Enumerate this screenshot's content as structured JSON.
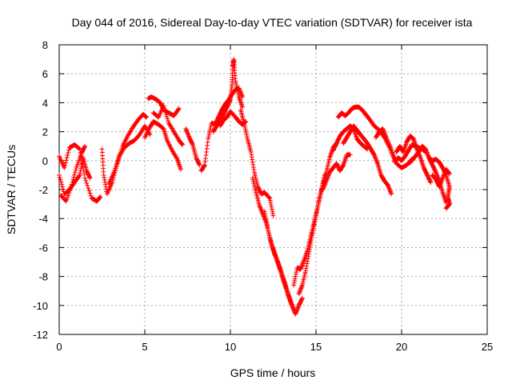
{
  "chart_data": {
    "type": "scatter",
    "title": "Day 044 of 2016, Sidereal Day-to-day VTEC variation (SDTVAR) for receiver ista",
    "xlabel": "GPS time / hours",
    "ylabel": "SDTVAR / TECUs",
    "xlim": [
      0,
      25
    ],
    "ylim": [
      -12,
      8
    ],
    "xticks": [
      0,
      5,
      10,
      15,
      20,
      25
    ],
    "yticks": [
      -12,
      -10,
      -8,
      -6,
      -4,
      -2,
      0,
      2,
      4,
      6,
      8
    ],
    "grid": true,
    "marker": "+",
    "series": [
      {
        "name": "SDTVAR",
        "color": "#ff0000",
        "strands": [
          [
            [
              0.0,
              0.3
            ],
            [
              0.3,
              -0.5
            ],
            [
              0.6,
              0.9
            ],
            [
              0.9,
              1.1
            ],
            [
              1.2,
              0.8
            ],
            [
              1.5,
              -1.2
            ],
            [
              1.9,
              -2.6
            ],
            [
              2.2,
              -2.8
            ],
            [
              2.4,
              -2.5
            ]
          ],
          [
            [
              0.0,
              -1.0
            ],
            [
              0.3,
              -2.3
            ],
            [
              0.6,
              -2.0
            ],
            [
              0.9,
              -1.5
            ],
            [
              1.2,
              -1.0
            ],
            [
              1.4,
              0.2
            ],
            [
              1.6,
              -0.7
            ],
            [
              1.8,
              -1.2
            ]
          ],
          [
            [
              0.1,
              -2.4
            ],
            [
              0.4,
              -2.8
            ],
            [
              0.7,
              -1.8
            ],
            [
              1.0,
              -0.5
            ],
            [
              1.3,
              0.5
            ],
            [
              1.5,
              1.0
            ]
          ],
          [
            [
              2.5,
              0.8
            ],
            [
              2.6,
              -1.0
            ],
            [
              2.8,
              -2.3
            ],
            [
              3.1,
              -1.5
            ],
            [
              3.4,
              -0.2
            ],
            [
              3.7,
              1.0
            ],
            [
              4.0,
              1.7
            ],
            [
              4.3,
              2.3
            ],
            [
              4.6,
              2.8
            ],
            [
              4.9,
              3.2
            ],
            [
              5.1,
              3.0
            ]
          ],
          [
            [
              2.9,
              -1.6
            ],
            [
              3.2,
              -0.8
            ],
            [
              3.5,
              0.3
            ],
            [
              3.8,
              0.9
            ],
            [
              4.1,
              1.2
            ],
            [
              4.4,
              1.4
            ],
            [
              4.7,
              1.8
            ],
            [
              5.0,
              2.4
            ],
            [
              5.3,
              1.8
            ]
          ],
          [
            [
              5.0,
              1.6
            ],
            [
              5.3,
              2.3
            ],
            [
              5.5,
              2.7
            ],
            [
              5.8,
              2.5
            ],
            [
              6.1,
              2.2
            ],
            [
              6.3,
              1.4
            ],
            [
              6.6,
              0.7
            ],
            [
              6.9,
              0.1
            ],
            [
              7.1,
              -0.6
            ]
          ],
          [
            [
              5.2,
              4.3
            ],
            [
              5.4,
              4.4
            ],
            [
              5.7,
              4.2
            ],
            [
              5.9,
              4.0
            ],
            [
              6.1,
              3.5
            ],
            [
              6.4,
              3.3
            ],
            [
              6.7,
              3.1
            ],
            [
              7.0,
              3.6
            ]
          ],
          [
            [
              5.5,
              3.3
            ],
            [
              5.8,
              3.0
            ],
            [
              6.1,
              3.8
            ],
            [
              6.4,
              2.6
            ],
            [
              6.7,
              2.0
            ],
            [
              7.0,
              1.4
            ],
            [
              7.2,
              1.1
            ]
          ],
          [
            [
              7.4,
              2.2
            ],
            [
              7.6,
              1.6
            ],
            [
              7.8,
              1.1
            ],
            [
              8.0,
              0.2
            ],
            [
              8.2,
              -0.3
            ]
          ],
          [
            [
              8.3,
              -0.7
            ],
            [
              8.5,
              -0.3
            ],
            [
              8.7,
              1.5
            ],
            [
              8.9,
              2.6
            ],
            [
              9.1,
              2.5
            ],
            [
              9.3,
              3.0
            ],
            [
              9.5,
              3.5
            ],
            [
              9.7,
              3.9
            ],
            [
              9.9,
              4.2
            ],
            [
              10.1,
              4.6
            ],
            [
              10.3,
              4.9
            ],
            [
              10.5,
              5.0
            ],
            [
              10.7,
              4.4
            ]
          ],
          [
            [
              9.0,
              2.0
            ],
            [
              9.2,
              2.4
            ],
            [
              9.4,
              2.8
            ],
            [
              9.6,
              3.2
            ],
            [
              9.8,
              3.7
            ],
            [
              10.0,
              4.2
            ],
            [
              10.1,
              5.3
            ],
            [
              10.15,
              6.5
            ],
            [
              10.2,
              7.0
            ],
            [
              10.3,
              5.5
            ],
            [
              10.5,
              4.4
            ],
            [
              10.7,
              3.7
            ]
          ],
          [
            [
              9.4,
              2.4
            ],
            [
              9.6,
              2.8
            ],
            [
              9.8,
              3.0
            ],
            [
              10.0,
              3.4
            ],
            [
              10.3,
              3.0
            ],
            [
              10.5,
              2.7
            ],
            [
              10.7,
              2.5
            ],
            [
              10.9,
              2.7
            ]
          ],
          [
            [
              10.6,
              3.5
            ],
            [
              10.8,
              2.6
            ],
            [
              11.0,
              1.5
            ],
            [
              11.2,
              0.6
            ],
            [
              11.4,
              -0.8
            ],
            [
              11.6,
              -1.8
            ],
            [
              11.8,
              -2.3
            ],
            [
              12.0,
              -2.2
            ],
            [
              12.3,
              -2.6
            ],
            [
              12.5,
              -3.8
            ]
          ],
          [
            [
              11.3,
              -1.2
            ],
            [
              11.5,
              -2.2
            ],
            [
              11.7,
              -3.1
            ],
            [
              11.9,
              -3.7
            ],
            [
              12.1,
              -4.3
            ],
            [
              12.3,
              -5.3
            ],
            [
              12.5,
              -6.1
            ],
            [
              12.7,
              -6.8
            ],
            [
              12.9,
              -7.5
            ],
            [
              13.1,
              -8.3
            ],
            [
              13.3,
              -9.0
            ],
            [
              13.5,
              -9.7
            ],
            [
              13.7,
              -10.3
            ]
          ],
          [
            [
              12.0,
              -3.5
            ],
            [
              12.2,
              -4.8
            ],
            [
              12.4,
              -5.8
            ],
            [
              12.6,
              -6.5
            ],
            [
              12.8,
              -7.1
            ],
            [
              13.0,
              -7.8
            ],
            [
              13.2,
              -8.5
            ],
            [
              13.4,
              -9.3
            ],
            [
              13.6,
              -10.0
            ],
            [
              13.8,
              -10.6
            ],
            [
              14.0,
              -10.0
            ],
            [
              14.2,
              -9.5
            ]
          ],
          [
            [
              13.7,
              -8.6
            ],
            [
              13.9,
              -7.4
            ],
            [
              14.1,
              -7.5
            ],
            [
              14.3,
              -6.9
            ],
            [
              14.5,
              -6.2
            ],
            [
              14.7,
              -5.2
            ],
            [
              14.9,
              -4.2
            ],
            [
              15.1,
              -3.2
            ],
            [
              15.3,
              -2.1
            ],
            [
              15.5,
              -1.0
            ]
          ],
          [
            [
              14.0,
              -9.2
            ],
            [
              14.2,
              -8.6
            ],
            [
              14.4,
              -7.6
            ],
            [
              14.6,
              -6.3
            ],
            [
              14.8,
              -5.0
            ],
            [
              15.0,
              -3.8
            ],
            [
              15.2,
              -2.6
            ],
            [
              15.4,
              -1.7
            ],
            [
              15.6,
              -0.8
            ],
            [
              15.8,
              0.2
            ],
            [
              16.0,
              0.9
            ],
            [
              16.2,
              1.2
            ]
          ],
          [
            [
              15.4,
              -2.0
            ],
            [
              15.6,
              -1.4
            ],
            [
              15.8,
              -0.8
            ],
            [
              16.0,
              -0.5
            ],
            [
              16.2,
              -0.2
            ],
            [
              16.4,
              -0.7
            ],
            [
              16.6,
              -0.3
            ],
            [
              16.8,
              0.4
            ],
            [
              17.0,
              0.4
            ]
          ],
          [
            [
              16.0,
              0.7
            ],
            [
              16.2,
              1.2
            ],
            [
              16.4,
              1.7
            ],
            [
              16.6,
              2.0
            ],
            [
              16.8,
              2.2
            ],
            [
              17.0,
              2.4
            ],
            [
              17.2,
              2.2
            ],
            [
              17.4,
              1.5
            ],
            [
              17.6,
              1.2
            ],
            [
              17.8,
              1.0
            ],
            [
              18.0,
              0.8
            ]
          ],
          [
            [
              16.3,
              3.0
            ],
            [
              16.5,
              3.3
            ],
            [
              16.7,
              3.1
            ],
            [
              16.9,
              3.3
            ],
            [
              17.1,
              3.6
            ],
            [
              17.3,
              3.7
            ],
            [
              17.5,
              3.7
            ],
            [
              17.7,
              3.5
            ],
            [
              17.9,
              3.2
            ],
            [
              18.1,
              2.9
            ],
            [
              18.4,
              2.4
            ],
            [
              18.7,
              2.1
            ],
            [
              19.0,
              1.6
            ],
            [
              19.3,
              0.9
            ],
            [
              19.6,
              0.0
            ]
          ],
          [
            [
              16.6,
              1.2
            ],
            [
              16.8,
              1.6
            ],
            [
              17.0,
              2.0
            ],
            [
              17.2,
              2.4
            ],
            [
              17.4,
              2.1
            ],
            [
              17.6,
              1.8
            ],
            [
              17.8,
              1.5
            ],
            [
              18.0,
              1.2
            ],
            [
              18.2,
              0.8
            ],
            [
              18.4,
              0.4
            ],
            [
              18.6,
              -0.2
            ],
            [
              18.8,
              -1.0
            ],
            [
              19.0,
              -1.4
            ],
            [
              19.2,
              -1.7
            ],
            [
              19.4,
              -2.3
            ]
          ],
          [
            [
              18.5,
              1.6
            ],
            [
              18.7,
              2.0
            ],
            [
              18.9,
              2.2
            ],
            [
              19.1,
              1.6
            ],
            [
              19.4,
              0.8
            ],
            [
              19.7,
              -0.2
            ],
            [
              20.0,
              -0.5
            ],
            [
              20.3,
              -0.3
            ],
            [
              20.6,
              0.1
            ]
          ],
          [
            [
              19.7,
              0.6
            ],
            [
              19.9,
              1.0
            ],
            [
              20.1,
              0.6
            ],
            [
              20.3,
              1.3
            ],
            [
              20.5,
              1.7
            ],
            [
              20.7,
              1.5
            ],
            [
              20.9,
              0.8
            ],
            [
              21.1,
              0.2
            ],
            [
              21.3,
              -0.5
            ],
            [
              21.5,
              -1.0
            ],
            [
              21.7,
              -1.5
            ]
          ],
          [
            [
              19.6,
              -0.1
            ],
            [
              19.8,
              0.2
            ],
            [
              20.0,
              0.0
            ],
            [
              20.2,
              0.3
            ],
            [
              20.4,
              0.7
            ],
            [
              20.6,
              1.1
            ],
            [
              20.8,
              1.0
            ],
            [
              21.0,
              0.9
            ],
            [
              21.2,
              0.8
            ],
            [
              21.4,
              0.6
            ]
          ],
          [
            [
              20.4,
              -0.2
            ],
            [
              20.6,
              0.0
            ],
            [
              20.8,
              0.3
            ],
            [
              21.0,
              0.6
            ],
            [
              21.2,
              1.0
            ],
            [
              21.4,
              0.8
            ],
            [
              21.6,
              0.2
            ],
            [
              21.8,
              -0.3
            ],
            [
              22.0,
              -0.8
            ],
            [
              22.2,
              -1.4
            ],
            [
              22.4,
              -2.2
            ],
            [
              22.6,
              -2.9
            ]
          ],
          [
            [
              21.6,
              0.2
            ],
            [
              21.8,
              0.0
            ],
            [
              22.0,
              0.1
            ],
            [
              22.2,
              -0.1
            ],
            [
              22.4,
              -0.5
            ],
            [
              22.6,
              -1.0
            ],
            [
              22.8,
              -1.8
            ],
            [
              22.7,
              -2.5
            ],
            [
              22.8,
              -3.0
            ],
            [
              22.6,
              -3.3
            ]
          ],
          [
            [
              21.8,
              -1.0
            ],
            [
              22.0,
              -1.3
            ],
            [
              22.2,
              -1.8
            ],
            [
              22.4,
              -1.2
            ],
            [
              22.6,
              -0.6
            ],
            [
              22.8,
              -0.9
            ]
          ]
        ]
      }
    ]
  }
}
